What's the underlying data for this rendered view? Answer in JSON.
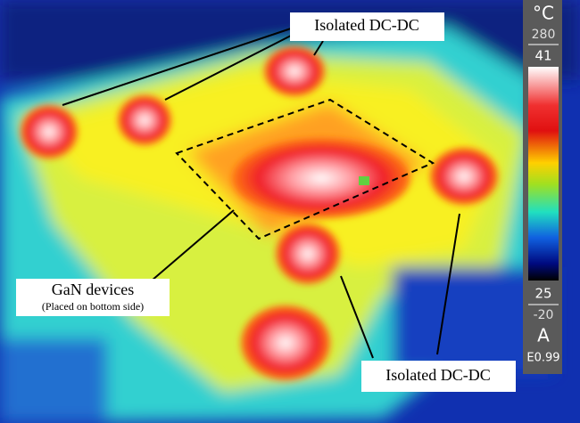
{
  "annotations": {
    "top": {
      "label": "Isolated DC-DC"
    },
    "gan": {
      "label": "GaN devices",
      "note": "(Placed on bottom side)"
    },
    "bottom": {
      "label": "Isolated DC-DC"
    }
  },
  "color_scale": {
    "unit": "°C",
    "range_max": 280,
    "span_max": 41,
    "span_min": 25,
    "range_min": -20,
    "mode": "A",
    "emissivity": "E0.99"
  }
}
